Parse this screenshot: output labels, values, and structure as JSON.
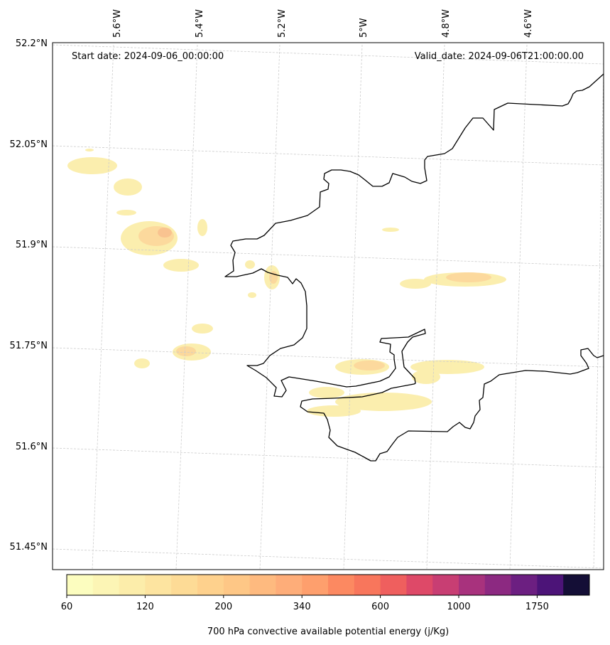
{
  "map": {
    "start_date": "Start date: 2024-09-06_00:00:00",
    "valid_date": "Valid_date: 2024-09-06T21:00:00.00",
    "lon_labels": [
      "5.6°W",
      "5.4°W",
      "5.2°W",
      "5°W",
      "4.8°W",
      "4.6°W"
    ],
    "lat_labels": [
      "52.2°N",
      "52.05°N",
      "51.9°N",
      "51.75°N",
      "51.6°N",
      "51.45°N"
    ]
  },
  "colorbar": {
    "label": "700 hPa convective available potential energy (j/Kg)",
    "tick_labels": [
      "60",
      "120",
      "200",
      "340",
      "600",
      "1000",
      "1750"
    ],
    "colors": [
      "#fcfdbf",
      "#fcf5b5",
      "#fcedaa",
      "#fde4a0",
      "#fddb96",
      "#fed18d",
      "#fec786",
      "#feba7f",
      "#fead79",
      "#fe9f6d",
      "#fc8961",
      "#f8765c",
      "#ef5f5e",
      "#de4968",
      "#c83e73",
      "#a8327d",
      "#8c2981",
      "#6c1f81",
      "#4c1478",
      "#140e36"
    ]
  },
  "legend_colors": {
    "cape_fill_low": "#fbeeaa",
    "cape_fill_mid": "#fcd59a",
    "cape_fill_high": "#f8b98a",
    "coastline": "#000000",
    "gridline": "#cccccc"
  }
}
